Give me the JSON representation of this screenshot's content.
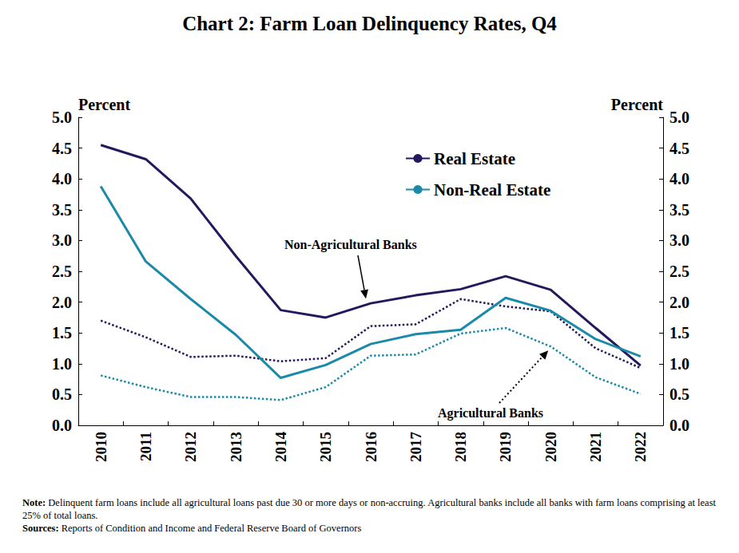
{
  "chart_data": {
    "type": "line",
    "title": "Chart 2: Farm Loan Delinquency Rates, Q4",
    "y_label": "Percent",
    "y2_label": "Percent",
    "categories": [
      "2010",
      "2011",
      "2012",
      "2013",
      "2014",
      "2015",
      "2016",
      "2017",
      "2018",
      "2019",
      "2020",
      "2021",
      "2022"
    ],
    "series": [
      {
        "name": "Real Estate",
        "color": "#221a5c",
        "line_style": "solid",
        "values": [
          4.55,
          4.32,
          3.68,
          2.75,
          1.87,
          1.75,
          1.98,
          2.11,
          2.21,
          2.42,
          2.2,
          1.58,
          0.97
        ]
      },
      {
        "name": "Non-Real Estate",
        "color": "#1a8aa8",
        "line_style": "solid",
        "values": [
          3.88,
          2.66,
          2.05,
          1.47,
          0.77,
          0.98,
          1.32,
          1.48,
          1.55,
          2.07,
          1.86,
          1.4,
          1.12
        ]
      },
      {
        "name": "Real Estate",
        "color": "#221a5c",
        "line_style": "dotted",
        "values": [
          1.7,
          1.43,
          1.11,
          1.13,
          1.04,
          1.09,
          1.61,
          1.64,
          2.05,
          1.93,
          1.85,
          1.25,
          0.93
        ]
      },
      {
        "name": "Non-Real Estate",
        "color": "#1a8aa8",
        "line_style": "dotted",
        "values": [
          0.81,
          0.62,
          0.46,
          0.46,
          0.41,
          0.62,
          1.13,
          1.15,
          1.49,
          1.58,
          1.28,
          0.78,
          0.51
        ]
      }
    ],
    "ylim": [
      0,
      5
    ],
    "yticks": [
      {
        "value": 0,
        "label": "0.0"
      },
      0.5,
      {
        "value": 1,
        "label": "1.0"
      },
      1.5,
      {
        "value": 2,
        "label": "2.0"
      },
      2.5,
      {
        "value": 3,
        "label": "3.0"
      },
      3.5,
      {
        "value": 4,
        "label": "4.0"
      },
      4.5,
      {
        "value": 5,
        "label": "5.0"
      }
    ],
    "y2lim": [
      0,
      5
    ],
    "y2ticks": [
      {
        "value": 0,
        "label": "0.0"
      },
      0.5,
      {
        "value": 1,
        "label": "1.0"
      },
      1.5,
      {
        "value": 2,
        "label": "2.0"
      },
      2.5,
      {
        "value": 3,
        "label": "3.0"
      },
      3.5,
      {
        "value": 4,
        "label": "4.0"
      },
      4.5,
      {
        "value": 5,
        "label": "5.0"
      }
    ],
    "grid": false,
    "legend": "upper right",
    "annotations": [
      {
        "text": "Non-Agricultural Banks"
      },
      {
        "text": "Agricultural Banks"
      }
    ],
    "note_label": "Note:",
    "note": "Delinquent farm loans include all agricultural loans past due 30 or more days or non-accruing. Agricultural banks include all banks with farm loans comprising at least 25% of total loans.",
    "sources_label": "Sources:",
    "sources": "Reports of Condition and Income and Federal Reserve Board of Governors"
  }
}
